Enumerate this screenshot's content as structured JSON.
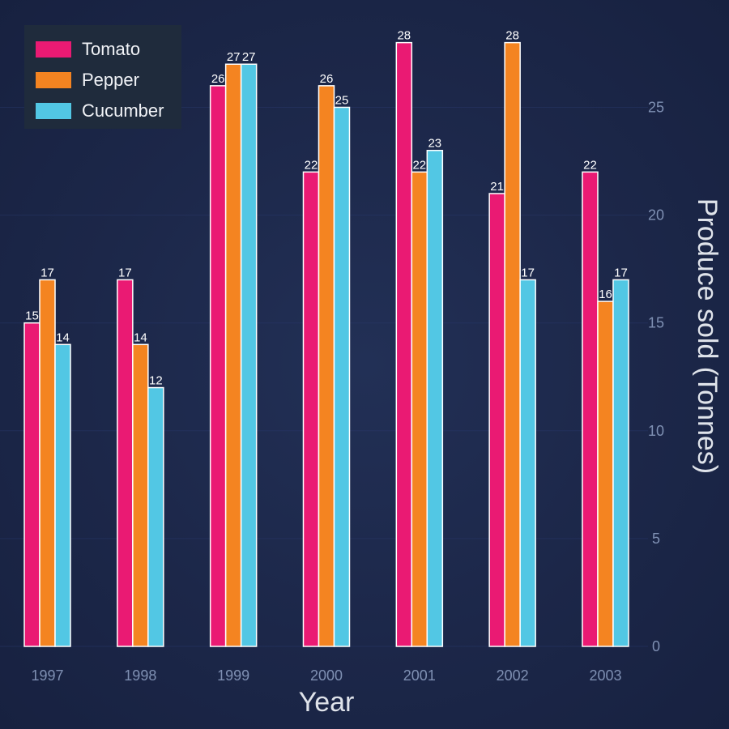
{
  "chart_data": {
    "type": "bar",
    "categories": [
      "1997",
      "1998",
      "1999",
      "2000",
      "2001",
      "2002",
      "2003"
    ],
    "series": [
      {
        "name": "Tomato",
        "color": "#ea1a73",
        "values": [
          15,
          17,
          26,
          22,
          28,
          21,
          22
        ]
      },
      {
        "name": "Pepper",
        "color": "#f48421",
        "values": [
          17,
          14,
          27,
          26,
          22,
          28,
          16
        ]
      },
      {
        "name": "Cucumber",
        "color": "#52c7e4",
        "values": [
          14,
          12,
          27,
          25,
          23,
          17,
          17
        ]
      }
    ],
    "xlabel": "Year",
    "ylabel": "Produce sold (Tonnes)",
    "ylim": [
      0,
      29
    ],
    "yticks": [
      0,
      5,
      10,
      15,
      20,
      25
    ],
    "y_axis_side": "right",
    "legend_position": "top-left",
    "data_labels": true,
    "colors": {
      "bar_outline": "#ffffff",
      "tick_label": "#7f90b3",
      "axis_title": "#dfe3ea",
      "data_label": "#ffffff"
    }
  }
}
